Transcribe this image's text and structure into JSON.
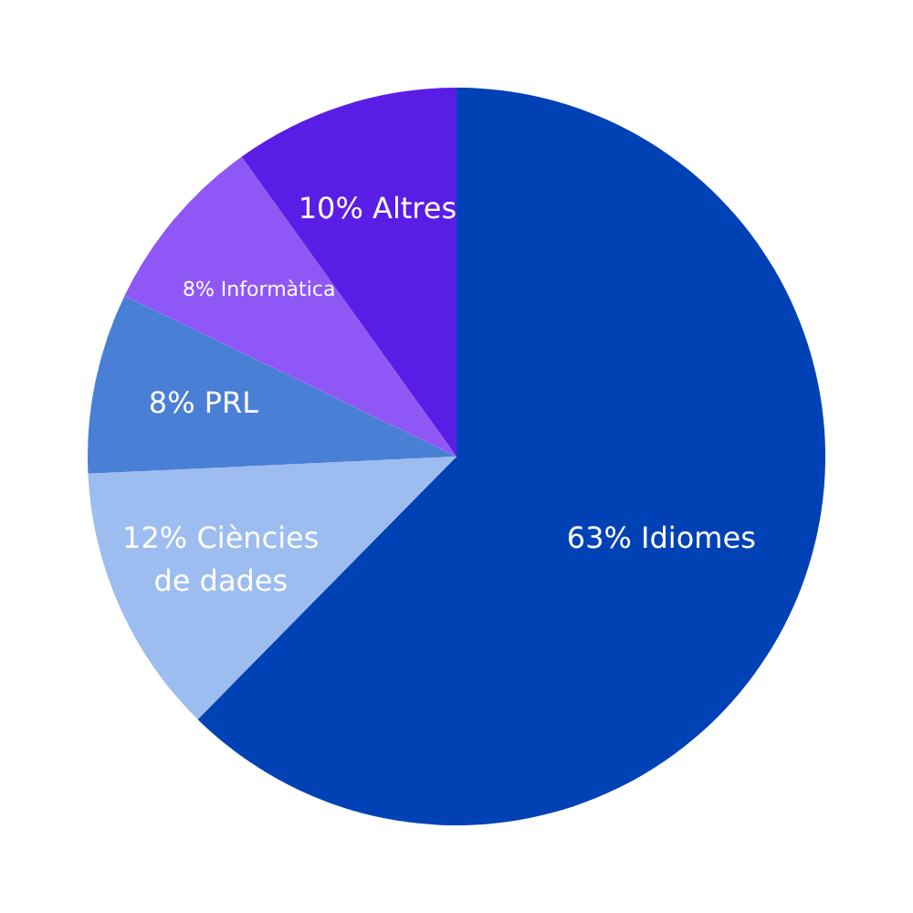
{
  "chart_data": {
    "type": "pie",
    "categories": [
      "Idiomes",
      "Ciències de dades",
      "PRL",
      "Informàtica",
      "Altres"
    ],
    "values": [
      63,
      12,
      8,
      8,
      10
    ],
    "value_labels": [
      "63%",
      "12%",
      "8%",
      "8%",
      "10%"
    ],
    "colors": [
      "#0042b5",
      "#9dbdf0",
      "#4a7fd6",
      "#8f57f6",
      "#5a1de6"
    ],
    "legend": false
  }
}
